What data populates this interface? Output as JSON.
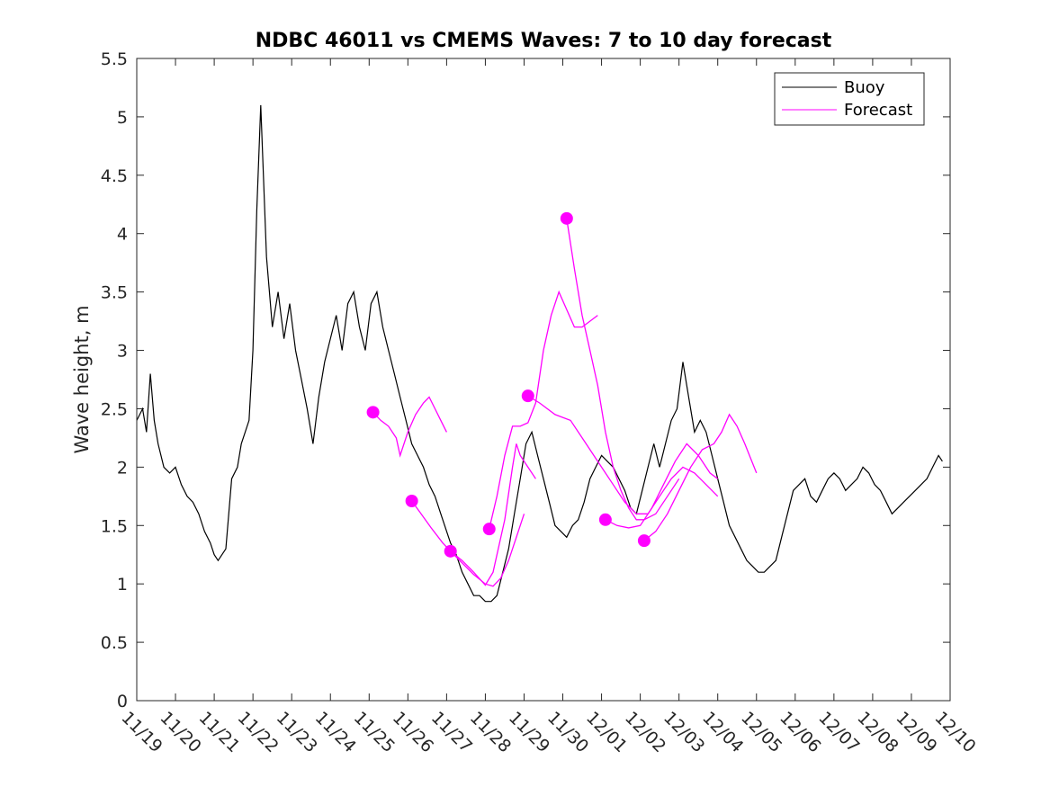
{
  "chart_data": {
    "type": "line",
    "title": "NDBC 46011 vs CMEMS Waves: 7 to 10 day forecast",
    "xlabel": "",
    "ylabel": "Wave height, m",
    "xlim": [
      0,
      21
    ],
    "ylim": [
      0,
      5.5
    ],
    "yticks": [
      0,
      0.5,
      1,
      1.5,
      2,
      2.5,
      3,
      3.5,
      4,
      4.5,
      5,
      5.5
    ],
    "ytick_labels": [
      "0",
      "0.5",
      "1",
      "1.5",
      "2",
      "2.5",
      "3",
      "3.5",
      "4",
      "4.5",
      "5",
      "5.5"
    ],
    "xticks": [
      0,
      1,
      2,
      3,
      4,
      5,
      6,
      7,
      8,
      9,
      10,
      11,
      12,
      13,
      14,
      15,
      16,
      17,
      18,
      19,
      20,
      21
    ],
    "xtick_labels": [
      "11/19",
      "11/20",
      "11/21",
      "11/22",
      "11/23",
      "11/24",
      "11/25",
      "11/26",
      "11/27",
      "11/28",
      "11/29",
      "11/30",
      "12/01",
      "12/02",
      "12/03",
      "12/04",
      "12/05",
      "12/06",
      "12/07",
      "12/08",
      "12/09",
      "12/10"
    ],
    "legend": {
      "placement": "top-right",
      "entries": [
        "Buoy",
        "Forecast"
      ]
    },
    "colors": {
      "buoy": "#000000",
      "forecast": "#ff00ff",
      "axis": "#262626"
    },
    "series": [
      {
        "name": "Buoy",
        "x": [
          0,
          0.15,
          0.25,
          0.35,
          0.45,
          0.55,
          0.7,
          0.85,
          1.0,
          1.15,
          1.3,
          1.45,
          1.6,
          1.75,
          1.9,
          2.0,
          2.1,
          2.2,
          2.3,
          2.45,
          2.6,
          2.7,
          2.8,
          2.9,
          3.0,
          3.1,
          3.2,
          3.35,
          3.5,
          3.65,
          3.8,
          3.95,
          4.1,
          4.25,
          4.4,
          4.55,
          4.7,
          4.85,
          5.0,
          5.15,
          5.3,
          5.45,
          5.6,
          5.75,
          5.9,
          6.05,
          6.2,
          6.35,
          6.5,
          6.65,
          6.8,
          6.95,
          7.1,
          7.25,
          7.4,
          7.55,
          7.7,
          7.85,
          8.0,
          8.1,
          8.25,
          8.4,
          8.55,
          8.7,
          8.85,
          9.0,
          9.15,
          9.3,
          9.45,
          9.6,
          9.75,
          9.9,
          10.05,
          10.2,
          10.35,
          10.5,
          10.65,
          10.8,
          10.95,
          11.1,
          11.25,
          11.4,
          11.55,
          11.7,
          11.85,
          12.0,
          12.15,
          12.3,
          12.45,
          12.6,
          12.75,
          12.9,
          13.05,
          13.2,
          13.35,
          13.5,
          13.65,
          13.8,
          13.95,
          14.1,
          14.25,
          14.4,
          14.55,
          14.7,
          14.85,
          15.0,
          15.15,
          15.3,
          15.45,
          15.6,
          15.75,
          15.9,
          16.05,
          16.2,
          16.35,
          16.5,
          16.65,
          16.8,
          16.95,
          17.1,
          17.25,
          17.4,
          17.55,
          17.7,
          17.85,
          18.0,
          18.15,
          18.3,
          18.45,
          18.6,
          18.75,
          18.9,
          19.05,
          19.2,
          19.35,
          19.5,
          19.65,
          19.8,
          19.95,
          20.1,
          20.25,
          20.4,
          20.55,
          20.7,
          20.8
        ],
        "values": [
          2.4,
          2.5,
          2.3,
          2.8,
          2.4,
          2.2,
          2.0,
          1.95,
          2.0,
          1.85,
          1.75,
          1.7,
          1.6,
          1.45,
          1.35,
          1.25,
          1.2,
          1.25,
          1.3,
          1.9,
          2.0,
          2.2,
          2.3,
          2.4,
          3.0,
          4.2,
          5.1,
          3.8,
          3.2,
          3.5,
          3.1,
          3.4,
          3.0,
          2.75,
          2.5,
          2.2,
          2.6,
          2.9,
          3.1,
          3.3,
          3.0,
          3.4,
          3.5,
          3.2,
          3.0,
          3.4,
          3.5,
          3.2,
          3.0,
          2.8,
          2.6,
          2.4,
          2.2,
          2.1,
          2.0,
          1.85,
          1.75,
          1.6,
          1.45,
          1.35,
          1.25,
          1.1,
          1.0,
          0.9,
          0.9,
          0.85,
          0.85,
          0.9,
          1.1,
          1.3,
          1.6,
          1.9,
          2.2,
          2.3,
          2.1,
          1.9,
          1.7,
          1.5,
          1.45,
          1.4,
          1.5,
          1.55,
          1.7,
          1.9,
          2.0,
          2.1,
          2.05,
          2.0,
          1.9,
          1.8,
          1.65,
          1.6,
          1.8,
          2.0,
          2.2,
          2.0,
          2.2,
          2.4,
          2.5,
          2.9,
          2.6,
          2.3,
          2.4,
          2.3,
          2.1,
          1.9,
          1.7,
          1.5,
          1.4,
          1.3,
          1.2,
          1.15,
          1.1,
          1.1,
          1.15,
          1.2,
          1.4,
          1.6,
          1.8,
          1.85,
          1.9,
          1.75,
          1.7,
          1.8,
          1.9,
          1.95,
          1.9,
          1.8,
          1.85,
          1.9,
          2.0,
          1.95,
          1.85,
          1.8,
          1.7,
          1.6,
          1.65,
          1.7,
          1.75,
          1.8,
          1.85,
          1.9,
          2.0,
          2.1,
          2.05
        ]
      },
      {
        "name": "Forecast",
        "runs": [
          {
            "x": [
              6.1,
              6.3,
              6.5,
              6.7,
              6.8,
              7.0,
              7.2,
              7.4,
              7.55,
              7.7,
              7.85,
              8.0
            ],
            "values": [
              2.47,
              2.4,
              2.35,
              2.25,
              2.1,
              2.3,
              2.45,
              2.55,
              2.6,
              2.5,
              2.4,
              2.3
            ],
            "marker": [
              6.1,
              2.47
            ]
          },
          {
            "x": [
              7.1,
              7.3,
              7.6,
              7.9,
              8.1,
              8.4,
              8.7,
              9.0,
              9.2,
              9.4,
              9.6,
              9.8,
              10.0
            ],
            "values": [
              1.71,
              1.62,
              1.48,
              1.35,
              1.28,
              1.18,
              1.08,
              1.0,
              0.98,
              1.05,
              1.2,
              1.4,
              1.6
            ],
            "marker": [
              7.1,
              1.71
            ]
          },
          {
            "x": [
              8.1,
              8.4,
              8.7,
              9.0,
              9.2,
              9.5,
              9.7,
              9.8,
              9.9,
              10.1,
              10.3
            ],
            "values": [
              1.28,
              1.2,
              1.1,
              0.99,
              1.1,
              1.55,
              2.0,
              2.2,
              2.1,
              2.0,
              1.9
            ],
            "marker": [
              8.1,
              1.28
            ]
          },
          {
            "x": [
              9.1,
              9.3,
              9.5,
              9.7,
              9.9,
              10.1,
              10.3,
              10.5,
              10.7,
              10.9,
              11.1,
              11.3,
              11.5,
              11.7,
              11.9
            ],
            "values": [
              1.47,
              1.75,
              2.1,
              2.35,
              2.35,
              2.38,
              2.55,
              3.0,
              3.3,
              3.5,
              3.35,
              3.2,
              3.2,
              3.25,
              3.3
            ],
            "marker": [
              9.1,
              1.47
            ]
          },
          {
            "x": [
              10.1,
              10.4,
              10.8,
              11.2,
              11.6,
              12.0,
              12.3,
              12.6,
              12.9,
              13.2,
              13.5,
              13.8,
              14.1,
              14.4,
              14.7,
              15.0
            ],
            "values": [
              2.61,
              2.55,
              2.45,
              2.4,
              2.2,
              2.0,
              1.85,
              1.7,
              1.6,
              1.6,
              1.75,
              1.9,
              2.0,
              1.95,
              1.85,
              1.75
            ],
            "marker": [
              10.1,
              2.61
            ]
          },
          {
            "x": [
              11.1,
              11.3,
              11.5,
              11.7,
              11.9,
              12.1,
              12.3,
              12.5,
              12.7,
              12.9,
              13.1,
              13.4,
              13.7,
              14.0
            ],
            "values": [
              4.13,
              3.7,
              3.3,
              3.0,
              2.7,
              2.3,
              2.0,
              1.8,
              1.65,
              1.55,
              1.55,
              1.6,
              1.75,
              1.9
            ],
            "marker": [
              11.1,
              4.13
            ]
          },
          {
            "x": [
              12.1,
              12.4,
              12.7,
              13.0,
              13.3,
              13.6,
              13.9,
              14.2,
              14.5,
              14.8,
              15.0
            ],
            "values": [
              1.55,
              1.5,
              1.48,
              1.5,
              1.65,
              1.85,
              2.05,
              2.2,
              2.1,
              1.95,
              1.9
            ],
            "marker": [
              12.1,
              1.55
            ]
          },
          {
            "x": [
              13.1,
              13.4,
              13.7,
              14.0,
              14.3,
              14.6,
              14.9,
              15.1,
              15.3,
              15.5,
              15.7,
              16.0
            ],
            "values": [
              1.37,
              1.45,
              1.6,
              1.8,
              2.0,
              2.15,
              2.2,
              2.3,
              2.45,
              2.35,
              2.2,
              1.95
            ],
            "marker": [
              13.1,
              1.37
            ]
          }
        ]
      }
    ]
  }
}
